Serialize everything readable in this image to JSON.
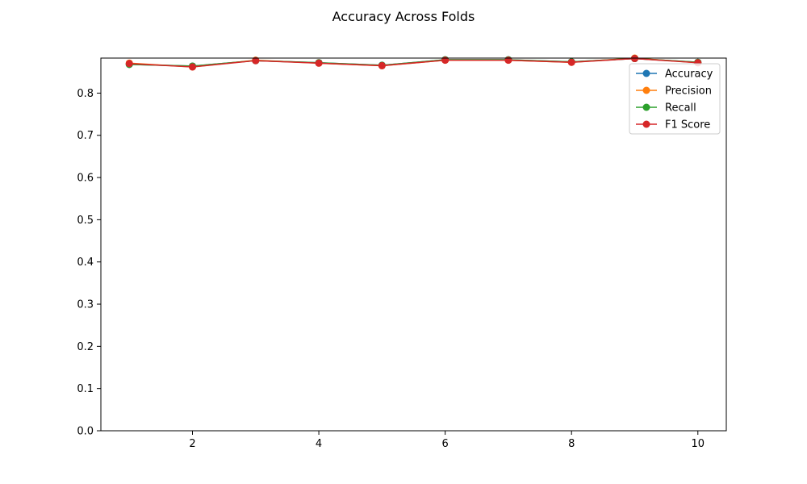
{
  "chart_data": {
    "type": "line",
    "title": "Accuracy Across Folds",
    "xlabel": "",
    "ylabel": "",
    "x": [
      1,
      2,
      3,
      4,
      5,
      6,
      7,
      8,
      9,
      10
    ],
    "xlim": [
      0.55,
      10.45
    ],
    "ylim": [
      0.0,
      0.883
    ],
    "x_ticks": [
      2,
      4,
      6,
      8,
      10
    ],
    "y_ticks": [
      0.0,
      0.1,
      0.2,
      0.3,
      0.4,
      0.5,
      0.6,
      0.7,
      0.8
    ],
    "x_tick_labels": [
      "2",
      "4",
      "6",
      "8",
      "10"
    ],
    "y_tick_labels": [
      "0.0",
      "0.1",
      "0.2",
      "0.3",
      "0.4",
      "0.5",
      "0.6",
      "0.7",
      "0.8"
    ],
    "grid": false,
    "legend_position": "top-right",
    "series": [
      {
        "name": "Accuracy",
        "color": "#1f77b4",
        "marker": "circle",
        "values": [
          0.868,
          0.864,
          0.877,
          0.872,
          0.866,
          0.879,
          0.879,
          0.874,
          0.882,
          0.873
        ]
      },
      {
        "name": "Precision",
        "color": "#ff7f0e",
        "marker": "circle",
        "values": [
          0.871,
          0.862,
          0.878,
          0.871,
          0.865,
          0.878,
          0.878,
          0.873,
          0.883,
          0.872
        ]
      },
      {
        "name": "Recall",
        "color": "#2ca02c",
        "marker": "circle",
        "values": [
          0.868,
          0.864,
          0.877,
          0.872,
          0.866,
          0.879,
          0.879,
          0.874,
          0.882,
          0.873
        ]
      },
      {
        "name": "F1 Score",
        "color": "#d62728",
        "marker": "circle",
        "values": [
          0.87,
          0.862,
          0.877,
          0.871,
          0.865,
          0.878,
          0.878,
          0.873,
          0.882,
          0.872
        ]
      }
    ]
  }
}
